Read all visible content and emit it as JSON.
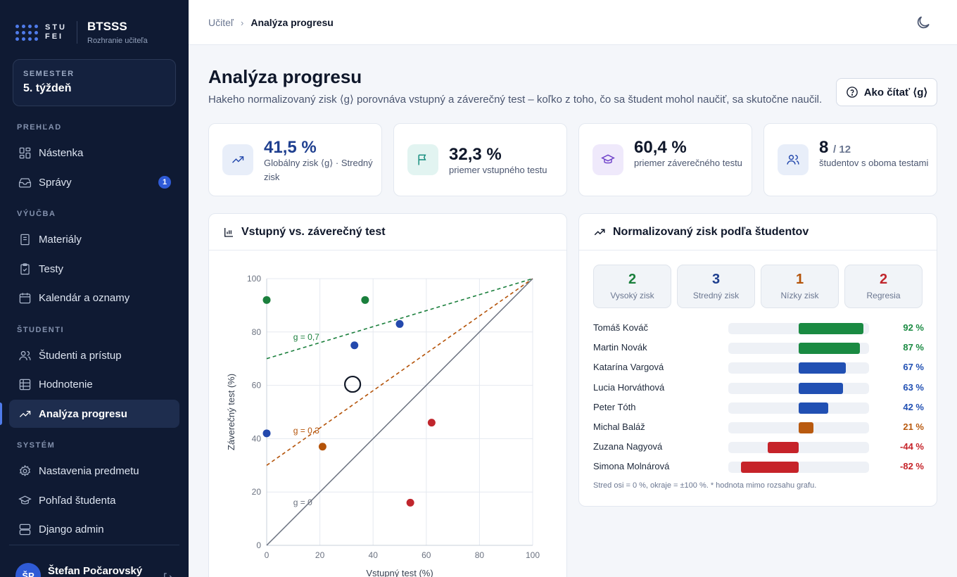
{
  "brand": {
    "logo_text": "STU",
    "logo_sub": "FEI",
    "title": "BTSSS",
    "subtitle": "Rozhranie učiteľa"
  },
  "semester": {
    "label": "SEMESTER",
    "value": "5. týždeň"
  },
  "sidebar": {
    "sections": [
      "PREHĽAD",
      "VÝUČBA",
      "ŠTUDENTI",
      "SYSTÉM"
    ],
    "items": [
      {
        "label": "Nástenka",
        "icon": "dashboard-icon"
      },
      {
        "label": "Správy",
        "icon": "inbox-icon",
        "badge": "1"
      },
      {
        "label": "Materiály",
        "icon": "book-icon"
      },
      {
        "label": "Testy",
        "icon": "clipboard-check-icon"
      },
      {
        "label": "Kalendár a oznamy",
        "icon": "calendar-icon"
      },
      {
        "label": "Študenti a prístup",
        "icon": "users-icon"
      },
      {
        "label": "Hodnotenie",
        "icon": "table-icon"
      },
      {
        "label": "Analýza progresu",
        "icon": "trending-up-icon",
        "active": true
      },
      {
        "label": "Nastavenia predmetu",
        "icon": "gear-icon"
      },
      {
        "label": "Pohľad študenta",
        "icon": "graduation-cap-icon"
      },
      {
        "label": "Django admin",
        "icon": "server-icon"
      }
    ]
  },
  "user": {
    "initials": "ŠP",
    "name": "Štefan Počarovský"
  },
  "breadcrumb": {
    "parent": "Učiteľ",
    "current": "Analýza progresu"
  },
  "header": {
    "title": "Analýza progresu",
    "subtitle": "Hakeho normalizovaný zisk ⟨g⟩ porovnáva vstupný a záverečný test – koľko z toho, čo sa študent mohol naučiť, sa skutočne naučil.",
    "help_button": "Ako čítať ⟨g⟩"
  },
  "stats": [
    {
      "value": "41,5 %",
      "label": "Globálny zisk ⟨g⟩ · Stredný zisk",
      "color": "#1f3f8f",
      "icon": "trending-up-icon"
    },
    {
      "value": "32,3 %",
      "label": "priemer vstupného testu",
      "color": "#0f172a",
      "icon": "flag-icon"
    },
    {
      "value": "60,4 %",
      "label": "priemer záverečného testu",
      "color": "#0f172a",
      "icon": "graduation-cap-icon"
    },
    {
      "value": "8",
      "value_suffix": "/ 12",
      "label": "študentov s oboma testami",
      "color": "#0f172a",
      "icon": "users-icon"
    }
  ],
  "scatter_panel": {
    "title": "Vstupný vs. záverečný test"
  },
  "gain_panel": {
    "title": "Normalizovaný zisk podľa študentov",
    "chips": [
      {
        "count": "2",
        "label": "Vysoký zisk",
        "color": "#1a7f3c"
      },
      {
        "count": "3",
        "label": "Stredný zisk",
        "color": "#1f3f8f"
      },
      {
        "count": "1",
        "label": "Nízky zisk",
        "color": "#b45309"
      },
      {
        "count": "2",
        "label": "Regresia",
        "color": "#c0262d"
      }
    ],
    "note": "Stred osi = 0 %, okraje = ±100 %. * hodnota mimo rozsahu grafu."
  },
  "chart_data": [
    {
      "type": "scatter",
      "xlabel": "Vstupný test (%)",
      "ylabel": "Záverečný test (%)",
      "xlim": [
        0,
        100
      ],
      "ylim": [
        0,
        100
      ],
      "xticks": [
        0,
        20,
        40,
        60,
        80,
        100
      ],
      "yticks": [
        0,
        20,
        40,
        60,
        80,
        100
      ],
      "grid": true,
      "reference_lines": [
        {
          "label": "g = 0,7",
          "g": 0.7,
          "color": "#1a7f3c"
        },
        {
          "label": "g = 0,3",
          "g": 0.3,
          "color": "#b45309"
        },
        {
          "label": "g = 0",
          "g": 0,
          "color": "#6b7280"
        }
      ],
      "points": [
        {
          "x": 0,
          "y": 92,
          "color": "#1a7f3c"
        },
        {
          "x": 37,
          "y": 92,
          "color": "#1a7f3c"
        },
        {
          "x": 50,
          "y": 83,
          "color": "#2449ad"
        },
        {
          "x": 33,
          "y": 75,
          "color": "#2449ad"
        },
        {
          "x": 0,
          "y": 42,
          "color": "#2449ad"
        },
        {
          "x": 21,
          "y": 37,
          "color": "#b45309"
        },
        {
          "x": 62,
          "y": 46,
          "color": "#c0262d"
        },
        {
          "x": 54,
          "y": 16,
          "color": "#c0262d"
        }
      ],
      "mean_point": {
        "x": 32.3,
        "y": 60.4
      }
    },
    {
      "type": "bar",
      "orientation": "horizontal-diverging",
      "xlim": [
        -100,
        100
      ],
      "categories": [
        "Tomáš Kováč",
        "Martin Novák",
        "Katarína Vargová",
        "Lucia Horváthová",
        "Peter Tóth",
        "Michal Baláž",
        "Zuzana Nagyová",
        "Simona Molnárová"
      ],
      "values": [
        92,
        87,
        67,
        63,
        42,
        21,
        -44,
        -82
      ],
      "labels": [
        "92 %",
        "87 %",
        "67 %",
        "63 %",
        "42 %",
        "21 %",
        "-44 %",
        "-82 %"
      ],
      "colors": [
        "#1a8a42",
        "#1a8a42",
        "#2150b3",
        "#2150b3",
        "#2150b3",
        "#b95a0f",
        "#c62329",
        "#c62329"
      ]
    }
  ]
}
